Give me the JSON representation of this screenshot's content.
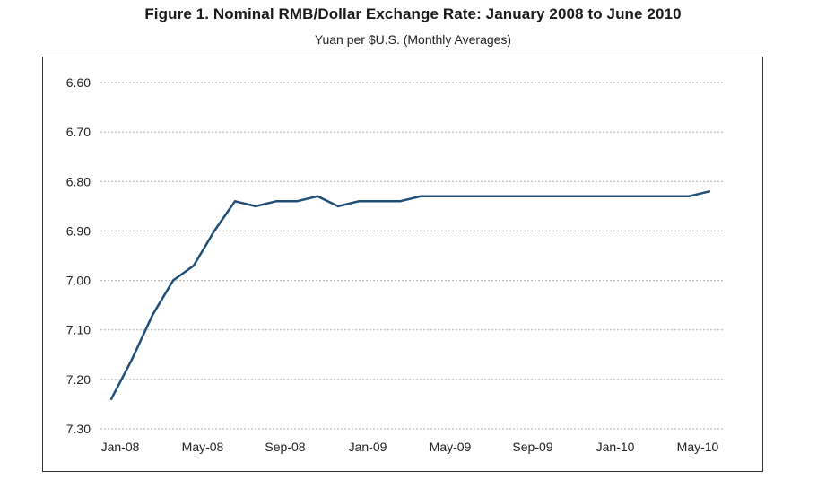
{
  "title": "Figure 1. Nominal RMB/Dollar Exchange Rate: January 2008 to June 2010",
  "subtitle": "Yuan per $U.S. (Monthly Averages)",
  "colors": {
    "line": "#1f4e79",
    "grid": "#b0b0b0",
    "frame": "#333333"
  },
  "chart_data": {
    "type": "line",
    "title": "Figure 1. Nominal RMB/Dollar Exchange Rate: January 2008 to June 2010",
    "subtitle": "Yuan per $U.S. (Monthly Averages)",
    "xlabel": "",
    "ylabel": "",
    "ylim": [
      6.6,
      7.3
    ],
    "y_inverted": true,
    "y_ticks": [
      "6.60",
      "6.70",
      "6.80",
      "6.90",
      "7.00",
      "7.10",
      "7.20",
      "7.30"
    ],
    "x_tick_labels": [
      "Jan-08",
      "May-08",
      "Sep-08",
      "Jan-09",
      "May-09",
      "Sep-09",
      "Jan-10",
      "May-10"
    ],
    "x_tick_months": [
      0,
      4,
      8,
      12,
      16,
      20,
      24,
      28
    ],
    "grid": "horizontal dashed",
    "series": [
      {
        "months": [
          "Jan-08",
          "Feb-08",
          "Mar-08",
          "Apr-08",
          "May-08",
          "Jun-08",
          "Jul-08",
          "Aug-08",
          "Sep-08",
          "Oct-08",
          "Nov-08",
          "Dec-08",
          "Jan-09",
          "Feb-09",
          "Mar-09",
          "Apr-09",
          "May-09",
          "Jun-09",
          "Jul-09",
          "Aug-09",
          "Sep-09",
          "Oct-09",
          "Nov-09",
          "Dec-09",
          "Jan-10",
          "Feb-10",
          "Mar-10",
          "Apr-10",
          "May-10",
          "Jun-10"
        ],
        "values": [
          7.24,
          7.16,
          7.07,
          7.0,
          6.97,
          6.9,
          6.84,
          6.85,
          6.84,
          6.84,
          6.83,
          6.85,
          6.84,
          6.84,
          6.84,
          6.83,
          6.83,
          6.83,
          6.83,
          6.83,
          6.83,
          6.83,
          6.83,
          6.83,
          6.83,
          6.83,
          6.83,
          6.83,
          6.83,
          6.82
        ]
      }
    ]
  }
}
